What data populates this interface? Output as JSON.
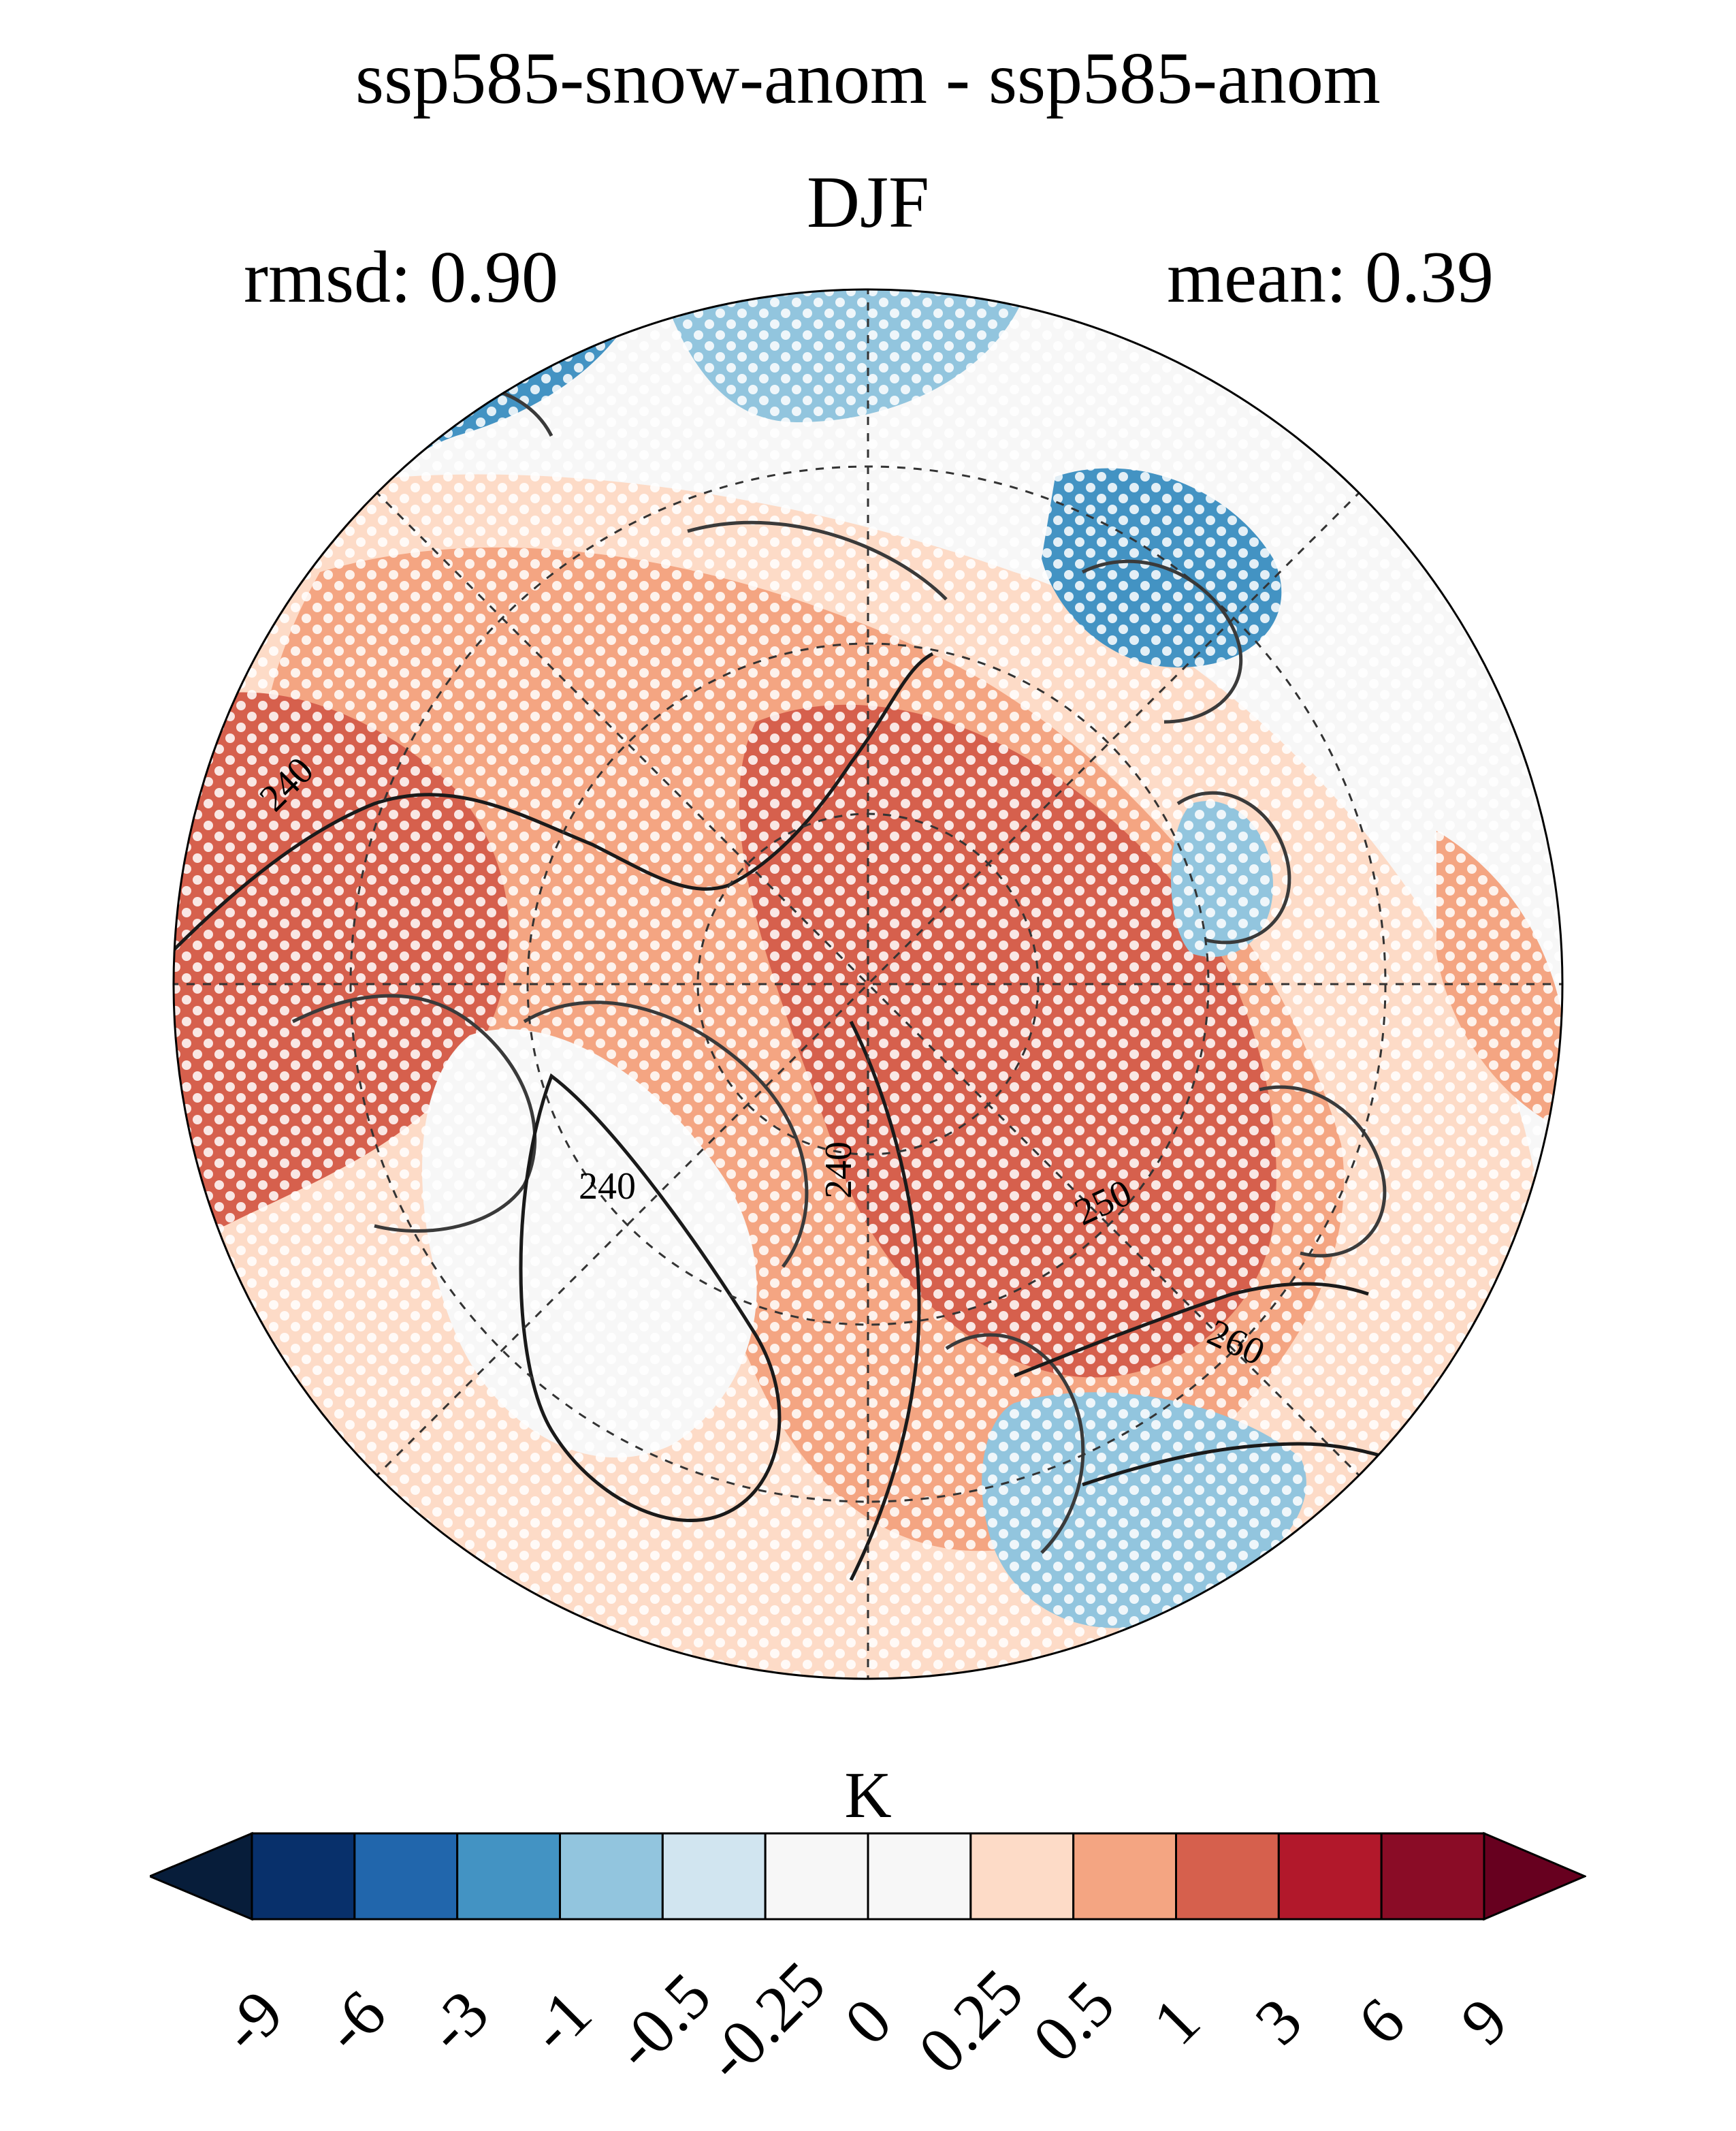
{
  "title": {
    "line1": "ssp585-snow-anom - ssp585-anom",
    "line2": "DJF"
  },
  "stats": {
    "rmsd": "rmsd: 0.90",
    "mean": "mean: 0.39"
  },
  "map": {
    "projection": "north-polar-stereographic",
    "contour_labels": [
      "240",
      "240",
      "240",
      "250",
      "260"
    ],
    "stippling": "significant"
  },
  "colorbar": {
    "unit": "K",
    "levels": [
      "-9",
      "-6",
      "-3",
      "-1",
      "-0.5",
      "-0.25",
      "0",
      "0.25",
      "0.5",
      "1",
      "3",
      "6",
      "9"
    ],
    "colors": [
      "#08306b",
      "#2166ac",
      "#4393c3",
      "#92c5de",
      "#d1e5f0",
      "#f7f7f7",
      "#f7f7f7",
      "#fddbc7",
      "#f4a582",
      "#d6604d",
      "#b2182b",
      "#8a0c26"
    ],
    "extend_low": "#071d3a",
    "extend_high": "#67001f"
  }
}
